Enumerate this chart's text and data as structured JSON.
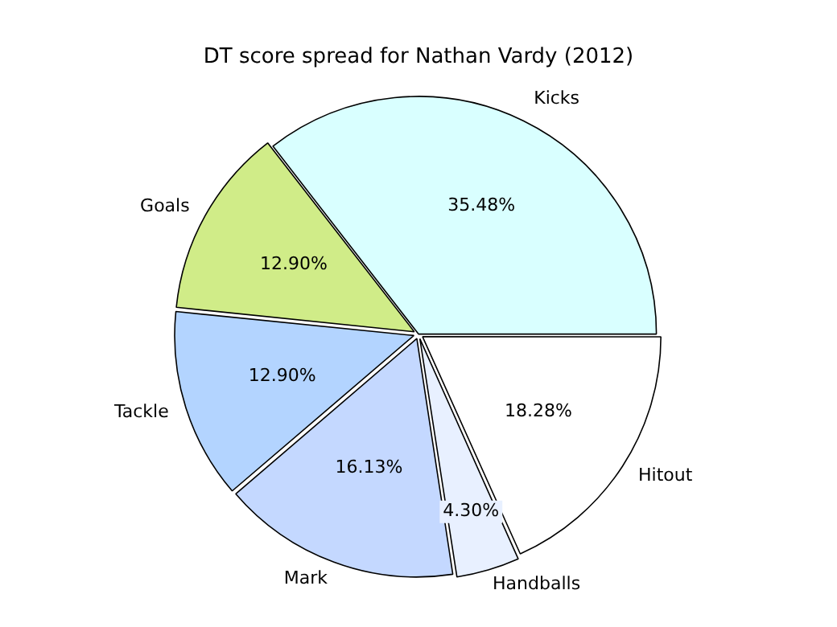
{
  "chart_data": {
    "type": "pie",
    "title": "DT score spread for Nathan Vardy (2012)",
    "categories": [
      "Hitout",
      "Handballs",
      "Mark",
      "Tackle",
      "Goals",
      "Kicks"
    ],
    "values": [
      18.28,
      4.3,
      16.13,
      12.9,
      12.9,
      35.48
    ],
    "colors": [
      "#ffffff",
      "#e8f0ff",
      "#c4d8ff",
      "#b3d4ff",
      "#d0ec88",
      "#d9ffff"
    ],
    "value_labels": [
      "18.28%",
      "4.30%",
      "16.13%",
      "12.90%",
      "12.90%",
      "35.48%"
    ],
    "legend": false
  }
}
